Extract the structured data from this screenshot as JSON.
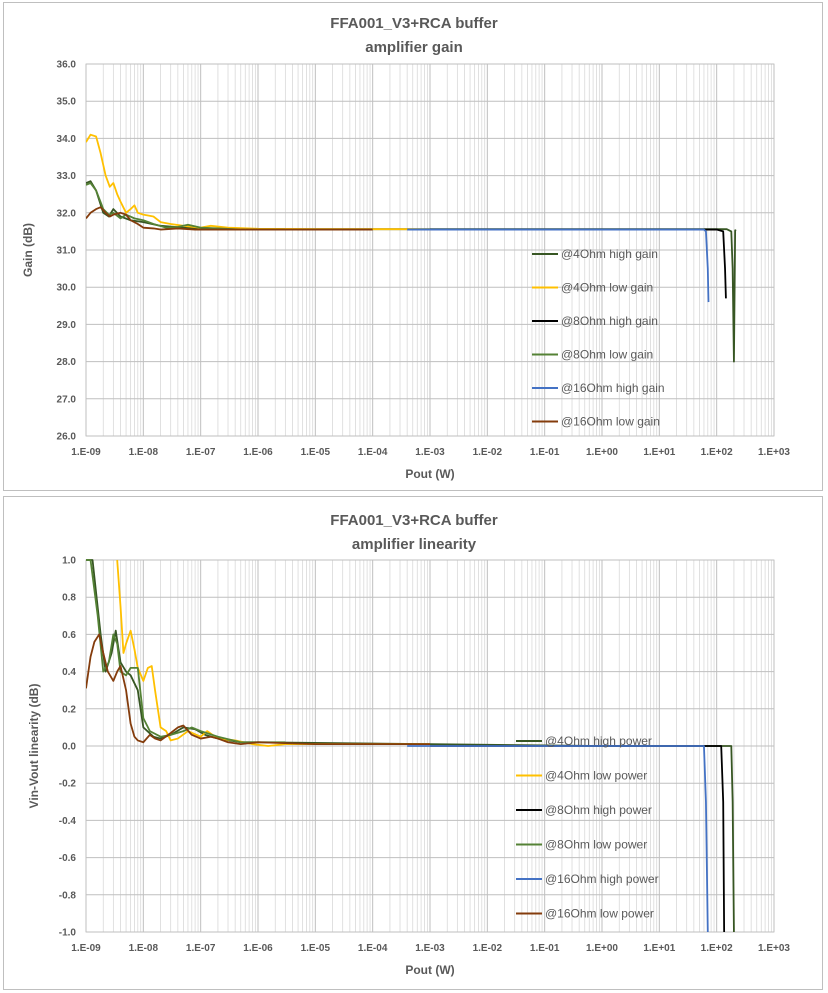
{
  "chart_data": [
    {
      "type": "line",
      "title_line1": "FFA001_V3+RCA buffer",
      "title_line2": "amplifier  gain",
      "xlabel": "Pout (W)",
      "ylabel": "Gain (dB)",
      "xscale": "log",
      "xlim": [
        1e-09,
        1000.0
      ],
      "ylim": [
        26.0,
        36.0
      ],
      "x_ticks": [
        "1.E-09",
        "1.E-08",
        "1.E-07",
        "1.E-06",
        "1.E-05",
        "1.E-04",
        "1.E-03",
        "1.E-02",
        "1.E-01",
        "1.E+00",
        "1.E+01",
        "1.E+02",
        "1.E+03"
      ],
      "y_ticks": [
        "36.0",
        "35.0",
        "34.0",
        "33.0",
        "32.0",
        "31.0",
        "30.0",
        "29.0",
        "28.0",
        "27.0",
        "26.0"
      ],
      "grid": "major and minor log gridlines",
      "legend_position": "right, inside plot",
      "series": [
        {
          "name": "@4Ohm high gain",
          "color": "#375623",
          "points": [
            [
              1e-09,
              32.8
            ],
            [
              1.2e-09,
              32.85
            ],
            [
              1.5e-09,
              32.6
            ],
            [
              2e-09,
              32.0
            ],
            [
              2.5e-09,
              31.9
            ],
            [
              3e-09,
              32.1
            ],
            [
              4e-09,
              31.9
            ],
            [
              6e-09,
              31.8
            ],
            [
              1e-08,
              31.75
            ],
            [
              2e-08,
              31.65
            ],
            [
              5e-08,
              31.6
            ],
            [
              1e-07,
              31.58
            ],
            [
              1e-06,
              31.56
            ],
            [
              0.0001,
              31.56
            ],
            [
              0.01,
              31.56
            ],
            [
              1,
              31.56
            ],
            [
              50,
              31.56
            ],
            [
              150,
              31.56
            ],
            [
              180,
              31.5
            ],
            [
              190,
              30.5
            ],
            [
              200,
              28.0
            ],
            [
              210,
              31.52
            ],
            [
              215,
              31.55
            ]
          ]
        },
        {
          "name": "@4Ohm low gain",
          "color": "#ffc000",
          "points": [
            [
              1e-09,
              33.9
            ],
            [
              1.2e-09,
              34.1
            ],
            [
              1.5e-09,
              34.05
            ],
            [
              1.8e-09,
              33.6
            ],
            [
              2.2e-09,
              33.0
            ],
            [
              2.6e-09,
              32.7
            ],
            [
              3e-09,
              32.8
            ],
            [
              3.5e-09,
              32.5
            ],
            [
              4e-09,
              32.3
            ],
            [
              5e-09,
              32.0
            ],
            [
              6e-09,
              32.1
            ],
            [
              7e-09,
              32.2
            ],
            [
              8e-09,
              32.0
            ],
            [
              1e-08,
              31.95
            ],
            [
              1.5e-08,
              31.9
            ],
            [
              2e-08,
              31.75
            ],
            [
              3e-08,
              31.7
            ],
            [
              5e-08,
              31.65
            ],
            [
              1e-07,
              31.6
            ],
            [
              1.5e-07,
              31.65
            ],
            [
              3e-07,
              31.6
            ],
            [
              1e-06,
              31.57
            ],
            [
              1e-05,
              31.56
            ],
            [
              0.0004,
              31.56
            ],
            [
              0.001,
              31.55
            ]
          ]
        },
        {
          "name": "@8Ohm high gain",
          "color": "#000000",
          "points": [
            [
              0.001,
              31.55
            ],
            [
              0.01,
              31.55
            ],
            [
              0.1,
              31.55
            ],
            [
              1,
              31.55
            ],
            [
              10,
              31.55
            ],
            [
              100,
              31.55
            ],
            [
              130,
              31.5
            ],
            [
              140,
              30.5
            ],
            [
              145,
              29.7
            ]
          ]
        },
        {
          "name": "@8Ohm low gain",
          "color": "#548235",
          "points": [
            [
              1e-09,
              32.75
            ],
            [
              1.2e-09,
              32.8
            ],
            [
              1.5e-09,
              32.6
            ],
            [
              2e-09,
              32.1
            ],
            [
              2.5e-09,
              31.95
            ],
            [
              3e-09,
              32.0
            ],
            [
              4e-09,
              31.85
            ],
            [
              5e-09,
              31.95
            ],
            [
              7e-09,
              31.85
            ],
            [
              1e-08,
              31.8
            ],
            [
              1.5e-08,
              31.7
            ],
            [
              2.5e-08,
              31.6
            ],
            [
              4e-08,
              31.62
            ],
            [
              6e-08,
              31.68
            ],
            [
              1e-07,
              31.6
            ],
            [
              2e-07,
              31.58
            ],
            [
              5e-07,
              31.55
            ],
            [
              1e-06,
              31.55
            ],
            [
              3e-06,
              31.55
            ]
          ]
        },
        {
          "name": "@16Ohm high gain",
          "color": "#4472c4",
          "points": [
            [
              0.0004,
              31.55
            ],
            [
              0.001,
              31.55
            ],
            [
              0.01,
              31.55
            ],
            [
              0.1,
              31.55
            ],
            [
              1,
              31.55
            ],
            [
              10,
              31.55
            ],
            [
              60,
              31.55
            ],
            [
              65,
              31.5
            ],
            [
              70,
              30.5
            ],
            [
              72,
              29.6
            ]
          ]
        },
        {
          "name": "@16Ohm low gain",
          "color": "#843c0c",
          "points": [
            [
              1e-09,
              31.85
            ],
            [
              1.2e-09,
              32.0
            ],
            [
              1.5e-09,
              32.1
            ],
            [
              1.8e-09,
              32.15
            ],
            [
              2.2e-09,
              32.0
            ],
            [
              2.6e-09,
              31.9
            ],
            [
              3e-09,
              31.95
            ],
            [
              4e-09,
              32.0
            ],
            [
              5e-09,
              31.95
            ],
            [
              6e-09,
              31.8
            ],
            [
              8e-09,
              31.7
            ],
            [
              1e-08,
              31.6
            ],
            [
              1.5e-08,
              31.58
            ],
            [
              2e-08,
              31.55
            ],
            [
              4e-08,
              31.58
            ],
            [
              8e-08,
              31.55
            ],
            [
              2e-07,
              31.55
            ],
            [
              1e-06,
              31.55
            ],
            [
              1e-05,
              31.55
            ],
            [
              0.0001,
              31.55
            ]
          ]
        }
      ]
    },
    {
      "type": "line",
      "title_line1": "FFA001_V3+RCA buffer",
      "title_line2": "amplifier  linearity",
      "xlabel": "Pout (W)",
      "ylabel": "Vin-Vout linearity (dB)",
      "xscale": "log",
      "xlim": [
        1e-09,
        1000.0
      ],
      "ylim": [
        -1.0,
        1.0
      ],
      "x_ticks": [
        "1.E-09",
        "1.E-08",
        "1.E-07",
        "1.E-06",
        "1.E-05",
        "1.E-04",
        "1.E-03",
        "1.E-02",
        "1.E-01",
        "1.E+00",
        "1.E+01",
        "1.E+02",
        "1.E+03"
      ],
      "y_ticks": [
        "1.0",
        "0.8",
        "0.6",
        "0.4",
        "0.2",
        "0.0",
        "-0.2",
        "-0.4",
        "-0.6",
        "-0.8",
        "-1.0"
      ],
      "grid": "major and minor log gridlines",
      "legend_position": "right, inside plot",
      "series": [
        {
          "name": "@4Ohm high power",
          "color": "#375623",
          "points": [
            [
              1e-09,
              1.0
            ],
            [
              1.3e-09,
              1.0
            ],
            [
              1.8e-09,
              0.6
            ],
            [
              2.2e-09,
              0.4
            ],
            [
              2.8e-09,
              0.5
            ],
            [
              3.3e-09,
              0.62
            ],
            [
              4e-09,
              0.45
            ],
            [
              5e-09,
              0.4
            ],
            [
              6e-09,
              0.38
            ],
            [
              8e-09,
              0.3
            ],
            [
              1e-08,
              0.1
            ],
            [
              1.5e-08,
              0.05
            ],
            [
              2e-08,
              0.04
            ],
            [
              3e-08,
              0.06
            ],
            [
              5e-08,
              0.1
            ],
            [
              8e-08,
              0.09
            ],
            [
              1.2e-07,
              0.06
            ],
            [
              2e-07,
              0.04
            ],
            [
              5e-07,
              0.02
            ],
            [
              1e-06,
              0.02
            ],
            [
              0.001,
              0.01
            ],
            [
              1,
              0.0
            ],
            [
              100,
              0.0
            ],
            [
              180,
              0.0
            ],
            [
              190,
              -0.3
            ],
            [
              200,
              -1.0
            ]
          ]
        },
        {
          "name": "@4Ohm low power",
          "color": "#ffc000",
          "points": [
            [
              3.5e-09,
              1.0
            ],
            [
              4e-09,
              0.75
            ],
            [
              4.5e-09,
              0.5
            ],
            [
              5e-09,
              0.55
            ],
            [
              6e-09,
              0.62
            ],
            [
              7e-09,
              0.52
            ],
            [
              8e-09,
              0.42
            ],
            [
              1e-08,
              0.35
            ],
            [
              1.2e-08,
              0.42
            ],
            [
              1.4e-08,
              0.43
            ],
            [
              1.6e-08,
              0.3
            ],
            [
              2e-08,
              0.1
            ],
            [
              2.5e-08,
              0.08
            ],
            [
              3e-08,
              0.03
            ],
            [
              4e-08,
              0.04
            ],
            [
              6e-08,
              0.08
            ],
            [
              1e-07,
              0.05
            ],
            [
              1.3e-07,
              0.08
            ],
            [
              2e-07,
              0.04
            ],
            [
              4e-07,
              0.03
            ],
            [
              8e-07,
              0.01
            ],
            [
              1.5e-06,
              0.0
            ],
            [
              3e-06,
              0.01
            ],
            [
              1e-05,
              0.01
            ],
            [
              0.001,
              0.01
            ]
          ]
        },
        {
          "name": "@8Ohm high power",
          "color": "#000000",
          "points": [
            [
              0.001,
              0.0
            ],
            [
              0.01,
              0.0
            ],
            [
              0.1,
              0.0
            ],
            [
              1,
              0.0
            ],
            [
              10,
              0.0
            ],
            [
              100,
              0.0
            ],
            [
              120,
              0.0
            ],
            [
              130,
              -0.3
            ],
            [
              135,
              -1.0
            ]
          ]
        },
        {
          "name": "@8Ohm low power",
          "color": "#548235",
          "points": [
            [
              1e-09,
              1.0
            ],
            [
              1.2e-09,
              1.0
            ],
            [
              1.6e-09,
              0.7
            ],
            [
              2e-09,
              0.4
            ],
            [
              2.5e-09,
              0.45
            ],
            [
              3e-09,
              0.6
            ],
            [
              3.5e-09,
              0.55
            ],
            [
              4e-09,
              0.4
            ],
            [
              5e-09,
              0.38
            ],
            [
              6e-09,
              0.42
            ],
            [
              8e-09,
              0.42
            ],
            [
              1e-08,
              0.15
            ],
            [
              1.3e-08,
              0.08
            ],
            [
              2e-08,
              0.05
            ],
            [
              3e-08,
              0.06
            ],
            [
              5e-08,
              0.08
            ],
            [
              7e-08,
              0.1
            ],
            [
              1e-07,
              0.08
            ],
            [
              2e-07,
              0.05
            ],
            [
              5e-07,
              0.02
            ],
            [
              1e-06,
              0.02
            ],
            [
              3e-06,
              0.02
            ]
          ]
        },
        {
          "name": "@16Ohm high power",
          "color": "#4472c4",
          "points": [
            [
              0.0004,
              0.0
            ],
            [
              0.001,
              0.0
            ],
            [
              0.01,
              0.0
            ],
            [
              0.1,
              0.0
            ],
            [
              1,
              0.0
            ],
            [
              10,
              0.0
            ],
            [
              60,
              0.0
            ],
            [
              65,
              -0.3
            ],
            [
              70,
              -1.0
            ]
          ]
        },
        {
          "name": "@16Ohm low power",
          "color": "#843c0c",
          "points": [
            [
              1e-09,
              0.31
            ],
            [
              1.2e-09,
              0.48
            ],
            [
              1.4e-09,
              0.56
            ],
            [
              1.7e-09,
              0.6
            ],
            [
              2e-09,
              0.5
            ],
            [
              2.4e-09,
              0.4
            ],
            [
              3e-09,
              0.35
            ],
            [
              3.5e-09,
              0.4
            ],
            [
              4e-09,
              0.43
            ],
            [
              5e-09,
              0.3
            ],
            [
              6e-09,
              0.12
            ],
            [
              7e-09,
              0.05
            ],
            [
              8e-09,
              0.03
            ],
            [
              1e-08,
              0.02
            ],
            [
              1.3e-08,
              0.06
            ],
            [
              1.6e-08,
              0.04
            ],
            [
              2e-08,
              0.03
            ],
            [
              3e-08,
              0.07
            ],
            [
              4e-08,
              0.1
            ],
            [
              5e-08,
              0.11
            ],
            [
              7e-08,
              0.06
            ],
            [
              1e-07,
              0.04
            ],
            [
              1.5e-07,
              0.05
            ],
            [
              2e-07,
              0.04
            ],
            [
              3e-07,
              0.02
            ],
            [
              5e-07,
              0.01
            ],
            [
              1e-06,
              0.02
            ],
            [
              1e-05,
              0.01
            ],
            [
              0.0001,
              0.01
            ],
            [
              0.001,
              0.01
            ]
          ]
        }
      ]
    }
  ]
}
